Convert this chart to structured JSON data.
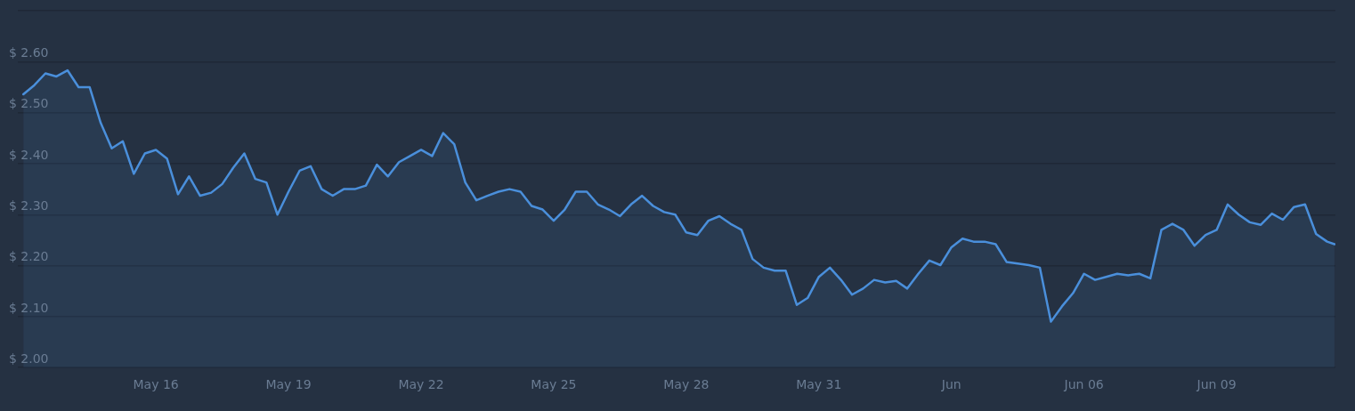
{
  "chart_data": {
    "type": "area",
    "x": [
      "--05-13T00:00",
      "--05-13T06:00",
      "--05-13T12:00",
      "--05-13T18:00",
      "--05-14T00:00",
      "--05-14T06:00",
      "--05-14T12:00",
      "--05-14T18:00",
      "--05-15T00:00",
      "--05-15T06:00",
      "--05-15T12:00",
      "--05-15T18:00",
      "--05-16T00:00",
      "--05-16T06:00",
      "--05-16T12:00",
      "--05-16T18:00",
      "--05-17T00:00",
      "--05-17T06:00",
      "--05-17T12:00",
      "--05-17T18:00",
      "--05-18T00:00",
      "--05-18T06:00",
      "--05-18T12:00",
      "--05-18T18:00",
      "--05-19T00:00",
      "--05-19T06:00",
      "--05-19T12:00",
      "--05-19T18:00",
      "--05-20T00:00",
      "--05-20T06:00",
      "--05-20T12:00",
      "--05-20T18:00",
      "--05-21T00:00",
      "--05-21T06:00",
      "--05-21T12:00",
      "--05-21T18:00",
      "--05-22T00:00",
      "--05-22T06:00",
      "--05-22T12:00",
      "--05-22T18:00",
      "--05-23T00:00",
      "--05-23T06:00",
      "--05-23T12:00",
      "--05-23T18:00",
      "--05-24T00:00",
      "--05-24T06:00",
      "--05-24T12:00",
      "--05-24T18:00",
      "--05-25T00:00",
      "--05-25T06:00",
      "--05-25T12:00",
      "--05-25T18:00",
      "--05-26T00:00",
      "--05-26T06:00",
      "--05-26T12:00",
      "--05-26T18:00",
      "--05-27T00:00",
      "--05-27T06:00",
      "--05-27T12:00",
      "--05-27T18:00",
      "--05-28T00:00",
      "--05-28T06:00",
      "--05-28T12:00",
      "--05-28T18:00",
      "--05-29T00:00",
      "--05-29T06:00",
      "--05-29T12:00",
      "--05-29T18:00",
      "--05-30T00:00",
      "--05-30T06:00",
      "--05-30T12:00",
      "--05-30T18:00",
      "--05-31T00:00",
      "--05-31T06:00",
      "--05-31T12:00",
      "--05-31T18:00",
      "--06-01T00:00",
      "--06-01T06:00",
      "--06-01T12:00",
      "--06-01T18:00",
      "--06-02T00:00",
      "--06-02T06:00",
      "--06-02T12:00",
      "--06-02T18:00",
      "--06-03T00:00",
      "--06-03T06:00",
      "--06-03T12:00",
      "--06-03T18:00",
      "--06-04T00:00",
      "--06-04T06:00",
      "--06-04T12:00",
      "--06-04T18:00",
      "--06-05T00:00",
      "--06-05T06:00",
      "--06-05T12:00",
      "--06-05T18:00",
      "--06-06T00:00",
      "--06-06T06:00",
      "--06-06T12:00",
      "--06-06T18:00",
      "--06-07T00:00",
      "--06-07T06:00",
      "--06-07T12:00",
      "--06-07T18:00",
      "--06-08T00:00",
      "--06-08T06:00",
      "--06-08T12:00",
      "--06-08T18:00",
      "--06-09T00:00",
      "--06-09T06:00",
      "--06-09T12:00",
      "--06-09T18:00",
      "--06-10T00:00",
      "--06-10T06:00",
      "--06-10T12:00",
      "--06-10T18:00",
      "--06-11T00:00",
      "--06-11T06:00",
      "--06-11T12:00",
      "--06-11T16:00"
    ],
    "series": [
      {
        "color": "#4a8fdb",
        "values": [
          2.536,
          2.554,
          2.577,
          2.571,
          2.583,
          2.55,
          2.55,
          2.48,
          2.43,
          2.444,
          2.38,
          2.42,
          2.427,
          2.41,
          2.34,
          2.375,
          2.337,
          2.343,
          2.36,
          2.392,
          2.42,
          2.37,
          2.363,
          2.3,
          2.345,
          2.386,
          2.395,
          2.35,
          2.337,
          2.35,
          2.35,
          2.357,
          2.398,
          2.375,
          2.403,
          2.415,
          2.427,
          2.415,
          2.46,
          2.438,
          2.363,
          2.328,
          2.337,
          2.345,
          2.35,
          2.345,
          2.317,
          2.31,
          2.288,
          2.31,
          2.345,
          2.345,
          2.32,
          2.31,
          2.297,
          2.32,
          2.337,
          2.317,
          2.305,
          2.3,
          2.265,
          2.26,
          2.288,
          2.297,
          2.282,
          2.27,
          2.213,
          2.196,
          2.19,
          2.19,
          2.123,
          2.137,
          2.178,
          2.196,
          2.172,
          2.143,
          2.155,
          2.172,
          2.167,
          2.17,
          2.155,
          2.184,
          2.21,
          2.201,
          2.236,
          2.253,
          2.247,
          2.247,
          2.242,
          2.207,
          2.204,
          2.201,
          2.196,
          2.09,
          2.12,
          2.146,
          2.184,
          2.172,
          2.178,
          2.184,
          2.181,
          2.184,
          2.175,
          2.27,
          2.282,
          2.27,
          2.239,
          2.26,
          2.27,
          2.32,
          2.3,
          2.285,
          2.28,
          2.302,
          2.29,
          2.315,
          2.32,
          2.262,
          2.247,
          2.242
        ]
      }
    ],
    "xlim": [
      "--05-12T21:00",
      "--06-11T16:30"
    ],
    "xticks": [
      {
        "value": "--05-16",
        "label": "May 16"
      },
      {
        "value": "--05-19",
        "label": "May 19"
      },
      {
        "value": "--05-22",
        "label": "May 22"
      },
      {
        "value": "--05-25",
        "label": "May 25"
      },
      {
        "value": "--05-28",
        "label": "May 28"
      },
      {
        "value": "--05-31",
        "label": "May 31"
      },
      {
        "value": "--06-03",
        "label": "Jun"
      },
      {
        "value": "--06-06",
        "label": "Jun 06"
      },
      {
        "value": "--06-09",
        "label": "Jun 09"
      }
    ],
    "ylim": [
      2.0,
      2.7
    ],
    "yticks": [
      {
        "value": 2.0,
        "label": "$ 2.00"
      },
      {
        "value": 2.1,
        "label": "$ 2.10"
      },
      {
        "value": 2.2,
        "label": "$ 2.20"
      },
      {
        "value": 2.3,
        "label": "$ 2.30"
      },
      {
        "value": 2.4,
        "label": "$ 2.40"
      },
      {
        "value": 2.5,
        "label": "$ 2.50"
      },
      {
        "value": 2.6,
        "label": "$ 2.60"
      },
      {
        "value": 2.7,
        "label": null
      }
    ],
    "grid": "y"
  }
}
